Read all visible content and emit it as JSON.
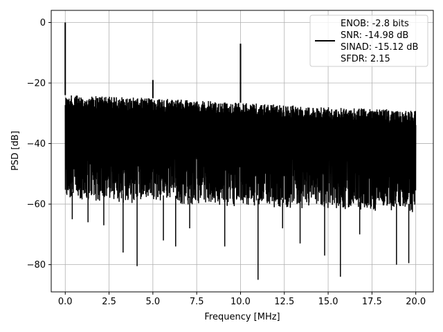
{
  "chart_data": {
    "type": "line",
    "xlabel": "Frequency [MHz]",
    "ylabel": "PSD [dB]",
    "xlim": [
      -0.8,
      21.0
    ],
    "ylim": [
      -89,
      4
    ],
    "x_ticks": [
      0.0,
      2.5,
      5.0,
      7.5,
      10.0,
      12.5,
      15.0,
      17.5,
      20.0
    ],
    "x_tick_labels": [
      "0.0",
      "2.5",
      "5.0",
      "7.5",
      "10.0",
      "12.5",
      "15.0",
      "17.5",
      "20.0"
    ],
    "y_ticks": [
      0,
      -20,
      -40,
      -60,
      -80
    ],
    "y_tick_labels": [
      "0",
      "−20",
      "−40",
      "−60",
      "−80"
    ],
    "grid": true,
    "legend_position": "upper-right",
    "series": [
      {
        "name": "ENOB: -2.8 bits\nSNR: -14.98 dB\nSINAD: -15.12 dB\nSFDR: 2.15",
        "color": "#000000",
        "x_range": [
          0.0,
          20.0
        ],
        "upper_envelope": [
          [
            0.0,
            -24
          ],
          [
            5.0,
            -25
          ],
          [
            10.0,
            -26.5
          ],
          [
            15.0,
            -28
          ],
          [
            20.0,
            -29
          ]
        ],
        "lower_envelope": [
          [
            0.0,
            -56
          ],
          [
            5.0,
            -57
          ],
          [
            10.0,
            -58
          ],
          [
            15.0,
            -59
          ],
          [
            20.0,
            -60
          ]
        ],
        "peaks": [
          {
            "x": 0.0,
            "y": 0
          },
          {
            "x": 5.0,
            "y": -19
          },
          {
            "x": 10.0,
            "y": -7
          }
        ],
        "deep_nulls": [
          {
            "x": 0.4,
            "y": -65
          },
          {
            "x": 1.3,
            "y": -66
          },
          {
            "x": 2.2,
            "y": -67
          },
          {
            "x": 3.3,
            "y": -76
          },
          {
            "x": 4.1,
            "y": -80.5
          },
          {
            "x": 5.6,
            "y": -72
          },
          {
            "x": 6.3,
            "y": -74
          },
          {
            "x": 7.1,
            "y": -68
          },
          {
            "x": 9.1,
            "y": -74
          },
          {
            "x": 11.0,
            "y": -85
          },
          {
            "x": 12.4,
            "y": -68
          },
          {
            "x": 13.4,
            "y": -73
          },
          {
            "x": 14.8,
            "y": -77
          },
          {
            "x": 15.7,
            "y": -84
          },
          {
            "x": 16.8,
            "y": -70
          },
          {
            "x": 18.9,
            "y": -80
          },
          {
            "x": 19.6,
            "y": -79.5
          }
        ]
      }
    ]
  },
  "legend": {
    "lines": [
      "ENOB: -2.8 bits",
      "SNR: -14.98 dB",
      "SINAD: -15.12 dB",
      "SFDR: 2.15"
    ]
  }
}
